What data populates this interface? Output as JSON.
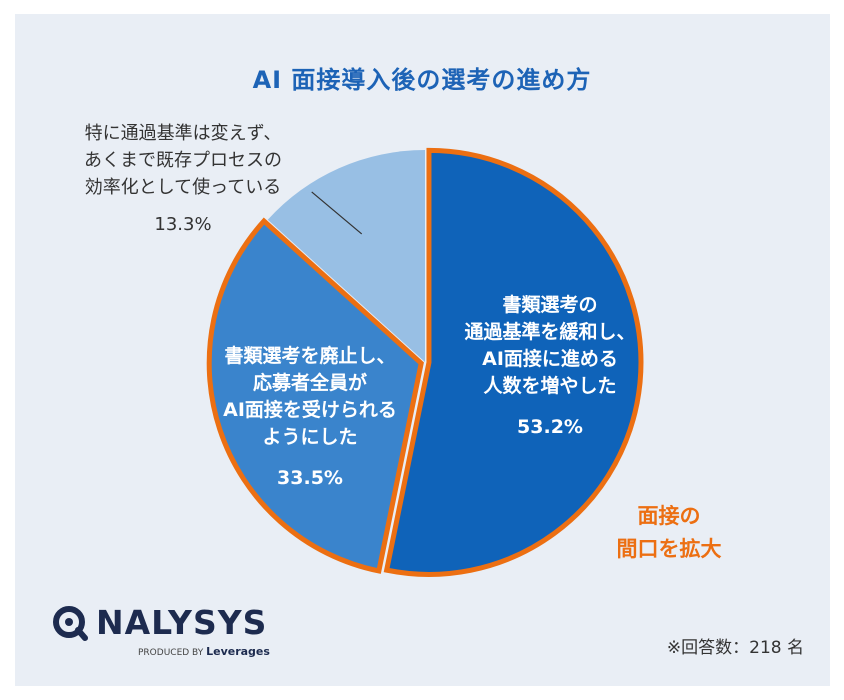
{
  "chart_data": {
    "type": "pie",
    "title": "AI 面接導入後の選考の進め方",
    "slices": [
      {
        "label_lines": [
          "書類選考の",
          "通過基準を緩和し、",
          "AI面接に進める",
          "人数を増やした"
        ],
        "value": 53.2,
        "pct_label": "53.2%",
        "color": "#0f63b9",
        "highlighted": true
      },
      {
        "label_lines": [
          "書類選考を廃止し、",
          "応募者全員が",
          "AI面接を受けられる",
          "ようにした"
        ],
        "value": 33.5,
        "pct_label": "33.5%",
        "color": "#3a84cc",
        "highlighted": true
      },
      {
        "label_lines": [
          "特に通過基準は変えず、",
          "あくまで既存プロセスの",
          "効率化として使っている"
        ],
        "value": 13.3,
        "pct_label": "13.3%",
        "color": "#98bfe4",
        "highlighted": false
      }
    ],
    "start_angle": "12 o'clock",
    "direction": "clockwise",
    "highlight_color": "#ec6f12",
    "callout_lines": [
      "面接の",
      "間口を拡大"
    ]
  },
  "footer": {
    "logo_word": "NALYSYS",
    "logo_produced": "PRODUCED BY",
    "logo_brand": "Leverages",
    "respondents": "※回答数：218 名"
  },
  "colors": {
    "background": "#e9eef5",
    "title": "#1d63b6",
    "logo": "#1d2b4f"
  }
}
